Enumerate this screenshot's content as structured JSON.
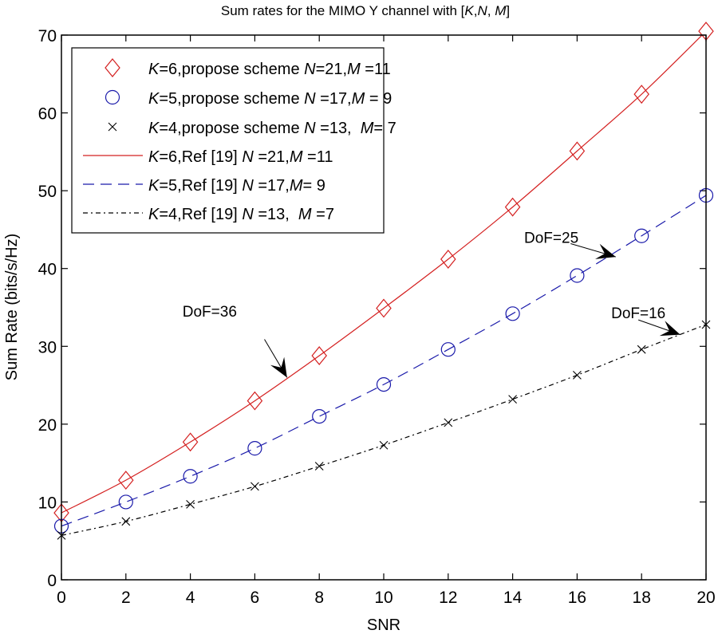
{
  "chart_data": {
    "type": "line",
    "title": "Sum rates for the MIMO Y channel with [K,N, M]",
    "title_parts": {
      "prefix": "Sum rates for the MIMO Y channel with [",
      "k": "K",
      "c1": ",",
      "n": "N",
      "c2": ", ",
      "m": "M",
      "suffix": "]"
    },
    "xlabel": "SNR",
    "ylabel": "Sum Rate (bits/s/Hz)",
    "xlim": [
      0,
      20
    ],
    "ylim": [
      0,
      70
    ],
    "xticks": [
      0,
      2,
      4,
      6,
      8,
      10,
      12,
      14,
      16,
      18,
      20
    ],
    "yticks": [
      0,
      10,
      20,
      30,
      40,
      50,
      60,
      70
    ],
    "grid": false,
    "legend_position": "top-left",
    "x": [
      0,
      2,
      4,
      6,
      8,
      10,
      12,
      14,
      16,
      18,
      20
    ],
    "series": [
      {
        "name": "K=6,propose scheme N=21,M =11",
        "style": "marker-diamond",
        "color": "#d42020",
        "values": [
          8.6,
          12.8,
          17.7,
          23.0,
          28.8,
          34.9,
          41.2,
          47.9,
          55.1,
          62.4,
          70.5
        ]
      },
      {
        "name": "K=5,propose scheme N=17,M = 9",
        "style": "marker-circle",
        "color": "#1a1aaa",
        "values": [
          6.9,
          10.0,
          13.3,
          16.9,
          21.0,
          25.1,
          29.6,
          34.2,
          39.1,
          44.2,
          49.4
        ]
      },
      {
        "name": "K=4,propose scheme N=13, M= 7",
        "style": "marker-x",
        "color": "#000000",
        "values": [
          5.7,
          7.5,
          9.7,
          12.0,
          14.6,
          17.3,
          20.2,
          23.2,
          26.3,
          29.6,
          32.8
        ]
      },
      {
        "name": "K=6,Ref [19] N=21,M =11",
        "style": "solid",
        "color": "#d42020",
        "values": [
          8.6,
          12.8,
          17.7,
          23.0,
          28.8,
          34.9,
          41.2,
          47.9,
          55.1,
          62.4,
          70.5
        ]
      },
      {
        "name": "K=5,Ref [19] N=17,M = 9",
        "style": "dashed",
        "color": "#1a1aaa",
        "values": [
          6.9,
          10.0,
          13.3,
          16.9,
          21.0,
          25.1,
          29.6,
          34.2,
          39.1,
          44.2,
          49.4
        ]
      },
      {
        "name": "K=4,Ref [19] N=13, M =7",
        "style": "dashdot",
        "color": "#000000",
        "values": [
          5.7,
          7.5,
          9.7,
          12.0,
          14.6,
          17.3,
          20.2,
          23.2,
          26.3,
          29.6,
          32.8
        ]
      }
    ],
    "legend": [
      {
        "k": "K",
        "a": "=6,propose scheme ",
        "n": "N",
        "b": "=21,",
        "m": "M",
        "c": " =11"
      },
      {
        "k": "K",
        "a": "=5,propose scheme ",
        "n": "N",
        "b": " =17,",
        "m": "M",
        "c": " = 9"
      },
      {
        "k": "K",
        "a": "=4,propose scheme ",
        "n": "N",
        "b": " =13,  ",
        "m": "M",
        "c": "= 7"
      },
      {
        "k": "K",
        "a": "=6,Ref [19] ",
        "n": "N",
        "b": " =21,",
        "m": "M",
        "c": " =11"
      },
      {
        "k": "K",
        "a": "=5,Ref [19] ",
        "n": "N",
        "b": " =17,",
        "m": "M",
        "c": "= 9"
      },
      {
        "k": "K",
        "a": "=4,Ref [19] ",
        "n": "N",
        "b": " =13,  ",
        "m": "M",
        "c": " =7"
      }
    ],
    "annotations": [
      {
        "text": "DoF=36",
        "label_at": [
          4.6,
          33.8
        ],
        "arrow_from": [
          6.3,
          30.9
        ],
        "arrow_to": [
          7.0,
          26.0
        ]
      },
      {
        "text": "DoF=25",
        "label_at": [
          15.2,
          43.3
        ],
        "arrow_from": [
          15.8,
          43.2
        ],
        "arrow_to": [
          17.2,
          41.5
        ]
      },
      {
        "text": "DoF=16",
        "label_at": [
          17.9,
          33.6
        ],
        "arrow_from": [
          17.9,
          33.4
        ],
        "arrow_to": [
          19.2,
          31.5
        ]
      }
    ]
  }
}
